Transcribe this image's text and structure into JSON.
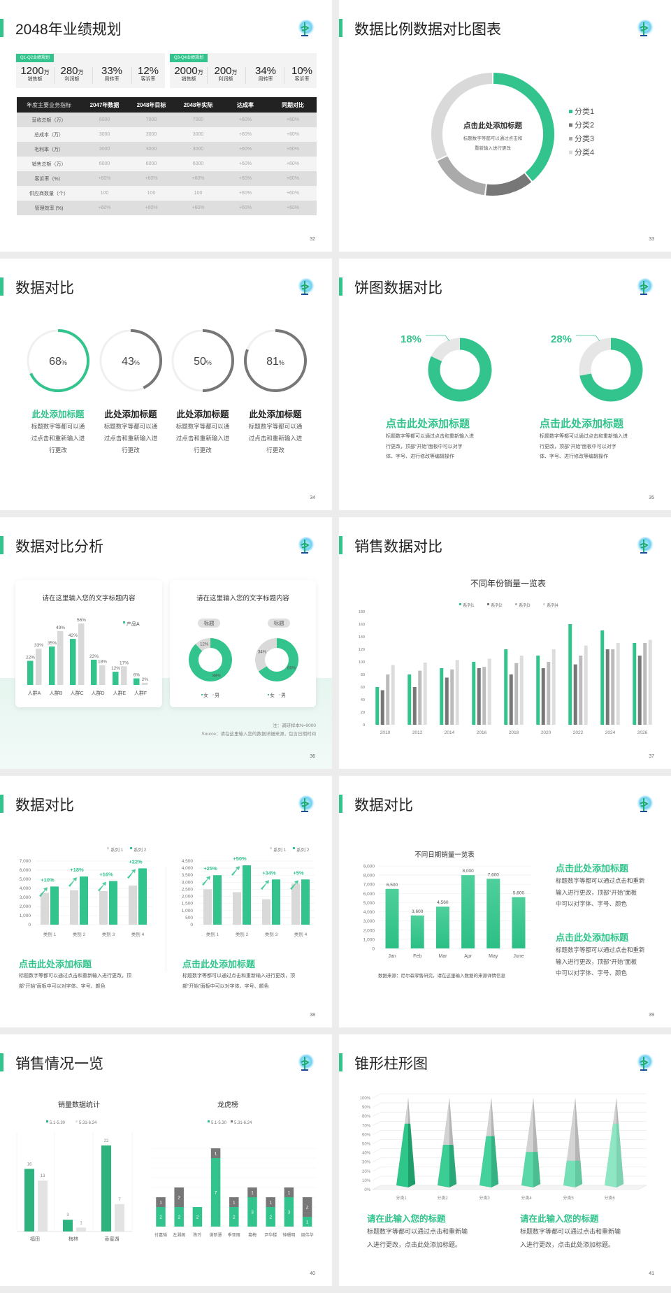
{
  "colors": {
    "green": "#33c48d",
    "dark_gray": "#777777",
    "mid_gray": "#aaaaaa",
    "light_gray": "#d9d9d9",
    "table_header": "#222222"
  },
  "logo_icon": "caduceus-logo-icon",
  "slide32": {
    "title": "2048年业绩规划",
    "page": "32",
    "groups": [
      {
        "tag": "Q1-Q2业绩规划",
        "stats": [
          {
            "value": "1200",
            "unit": "万",
            "label": "销售额"
          },
          {
            "value": "280",
            "unit": "万",
            "label": "利润额"
          },
          {
            "value": "33%",
            "unit": "",
            "label": "周转率"
          },
          {
            "value": "12%",
            "unit": "",
            "label": "客诉率"
          }
        ]
      },
      {
        "tag": "Q3-Q4业绩规划",
        "stats": [
          {
            "value": "2000",
            "unit": "万",
            "label": "销售额"
          },
          {
            "value": "200",
            "unit": "万",
            "label": "利润额"
          },
          {
            "value": "34%",
            "unit": "",
            "label": "周转率"
          },
          {
            "value": "10%",
            "unit": "",
            "label": "客诉率"
          }
        ]
      }
    ],
    "table": {
      "headers": [
        "年度主要业务指标",
        "2047年数据",
        "2048年目标",
        "2048年实际",
        "达成率",
        "同期对比"
      ],
      "rows": [
        [
          "营收总额（万）",
          "6000",
          "7000",
          "7000",
          "+60%",
          "+60%"
        ],
        [
          "总成本（万）",
          "3000",
          "3000",
          "3000",
          "+60%",
          "+60%"
        ],
        [
          "毛利率（万）",
          "3000",
          "3000",
          "3000",
          "+60%",
          "+60%"
        ],
        [
          "销售总额（万）",
          "6000",
          "6000",
          "6000",
          "+60%",
          "+60%"
        ],
        [
          "客诉率（%）",
          "+60%",
          "+60%",
          "+60%",
          "+60%",
          "+60%"
        ],
        [
          "供应商数量（个）",
          "100",
          "100",
          "100",
          "+60%",
          "+60%"
        ],
        [
          "管理效率 (%)",
          "+60%",
          "+60%",
          "+60%",
          "+60%",
          "+60%"
        ]
      ]
    }
  },
  "slide33": {
    "title": "数据比例数据对比图表",
    "page": "33",
    "center_title": "点击此处添加标题",
    "center_desc": [
      "标题数字等都可以通过点击和",
      "重新输入进行更改"
    ]
  },
  "slide34": {
    "title": "数据对比",
    "page": "34",
    "unit": "%",
    "items": [
      {
        "value": 68,
        "title": "此处添加标题",
        "desc": [
          "标题数字等都可以通",
          "过点击和重新输入进",
          "行更改"
        ],
        "accent": "green"
      },
      {
        "value": 43,
        "title": "此处添加标题",
        "desc": [
          "标题数字等都可以通",
          "过点击和重新输入进",
          "行更改"
        ],
        "accent": "gray"
      },
      {
        "value": 50,
        "title": "此处添加标题",
        "desc": [
          "标题数字等都可以通",
          "过点击和重新输入进",
          "行更改"
        ],
        "accent": "gray"
      },
      {
        "value": 81,
        "title": "此处添加标题",
        "desc": [
          "标题数字等都可以通",
          "过点击和重新输入进",
          "行更改"
        ],
        "accent": "gray"
      }
    ]
  },
  "slide35": {
    "title": "饼图数据对比",
    "page": "35",
    "items": [
      {
        "label": "18%",
        "title": "点击此处添加标题",
        "desc": [
          "标题数字等都可以通过点击和重新输入进",
          "行更改，顶部“开始”面板中可以对字",
          "体、字号、进行修改等编辑操作"
        ]
      },
      {
        "label": "28%",
        "title": "点击此处添加标题",
        "desc": [
          "标题数字等都可以通过点击和重新输入进",
          "行更改，顶部“开始”面板中可以对字",
          "体、字号、进行修改等编辑操作"
        ]
      }
    ]
  },
  "slide36": {
    "title": "数据对比分析",
    "page": "36",
    "card_titles": [
      "请在这里输入您的文字标题内容",
      "请在这里输入您的文字标题内容"
    ],
    "tags": [
      "标题",
      "标题"
    ],
    "note": "注：调研样本N=9000",
    "source": "Source：请在这里输入您的数据详细来源，包含日期时间"
  },
  "slide37": {
    "title": "销售数据对比",
    "page": "37"
  },
  "slide38": {
    "title": "数据对比",
    "page": "38",
    "items": [
      {
        "title": "点击此处添加标题",
        "desc": [
          "标题数字等都可以通过点击和重新输入进行更改，顶",
          "部“开始”面板中可以对字体、字号、颜色"
        ]
      },
      {
        "title": "点击此处添加标题",
        "desc": [
          "标题数字等都可以通过点击和重新输入进行更改，顶",
          "部“开始”面板中可以对字体、字号、颜色"
        ]
      }
    ]
  },
  "slide39": {
    "title": "数据对比",
    "page": "39",
    "source": "数据来源：尼尔森零售研究，请在这里输入数据的来源详情信息",
    "items": [
      {
        "title": "点击此处添加标题",
        "desc": [
          "标题数字等都可以通过点击和重新",
          "输入进行更改，顶部“开始”面板",
          "中可以对字体、字号、颜色"
        ]
      },
      {
        "title": "点击此处添加标题",
        "desc": [
          "标题数字等都可以通过点击和重新",
          "输入进行更改，顶部“开始”面板",
          "中可以对字体、字号、颜色"
        ]
      }
    ]
  },
  "slide40": {
    "title": "销售情况一览",
    "page": "40"
  },
  "slide41": {
    "title": "锥形柱形图",
    "page": "41",
    "items": [
      {
        "title": "请在此输入您的标题",
        "desc": [
          "标题数字等都可以通过点击和重新输",
          "入进行更改，点击此处添加标题。"
        ]
      },
      {
        "title": "请在此输入您的标题",
        "desc": [
          "标题数字等都可以通过点击和重新输",
          "入进行更改，点击此处添加标题。"
        ]
      }
    ]
  },
  "chart_data": [
    {
      "type": "pie",
      "donut": true,
      "categories": [
        "分类1",
        "分类2",
        "分类3",
        "分类4"
      ],
      "values": [
        39,
        13,
        16,
        32
      ],
      "colors": [
        "#33c48d",
        "#777777",
        "#aaaaaa",
        "#d9d9d9"
      ],
      "legend": "right"
    },
    {
      "type": "pie",
      "donut": true,
      "values": [
        82,
        18
      ],
      "data_labels": [
        "",
        "18%"
      ],
      "colors": [
        "#33c48d",
        "#e6e6e6"
      ]
    },
    {
      "type": "pie",
      "donut": true,
      "values": [
        72,
        28
      ],
      "data_labels": [
        "",
        "28%"
      ],
      "colors": [
        "#33c48d",
        "#e6e6e6"
      ]
    },
    {
      "type": "bar",
      "categories": [
        "人群A",
        "人群B",
        "人群C",
        "人群D",
        "人群E",
        "人群F"
      ],
      "series": [
        {
          "name": "产品A",
          "values": [
            22,
            35,
            42,
            23,
            12,
            6
          ]
        },
        {
          "values": [
            33,
            49,
            56,
            18,
            17,
            2
          ]
        }
      ],
      "unit": "%",
      "legend": "top-right"
    },
    {
      "type": "pie",
      "donut": true,
      "categories": [
        "女",
        "男"
      ],
      "values": [
        88,
        12
      ],
      "data_labels": [
        "88%",
        "12%"
      ]
    },
    {
      "type": "pie",
      "donut": true,
      "categories": [
        "女",
        "男"
      ],
      "values": [
        66,
        34
      ],
      "data_labels": [
        "66%",
        "34%"
      ]
    },
    {
      "type": "bar",
      "title": "不同年份销量一览表",
      "categories": [
        "2010",
        "2012",
        "2014",
        "2016",
        "2018",
        "2020",
        "2022",
        "2024",
        "2026"
      ],
      "series": [
        {
          "name": "系列1",
          "values": [
            60,
            80,
            90,
            100,
            120,
            110,
            160,
            150,
            130
          ]
        },
        {
          "name": "系列2",
          "values": [
            55,
            60,
            75,
            90,
            80,
            90,
            96,
            120,
            110
          ]
        },
        {
          "name": "系列3",
          "values": [
            80,
            86,
            88,
            92,
            98,
            100,
            110,
            120,
            130
          ]
        },
        {
          "name": "系列4",
          "values": [
            95,
            99,
            103,
            105,
            110,
            120,
            126,
            130,
            135
          ]
        }
      ],
      "ylim": [
        0,
        180
      ],
      "yticks": [
        0,
        20,
        40,
        60,
        80,
        100,
        120,
        140,
        160,
        180
      ],
      "legend": "top",
      "grid": false
    },
    {
      "type": "bar",
      "categories": [
        "类别 1",
        "类别 2",
        "类别 3",
        "类别 4"
      ],
      "series": [
        {
          "name": "系列 1",
          "values": [
            3500,
            3800,
            3700,
            4300
          ]
        },
        {
          "name": "系列 2",
          "values": [
            4200,
            5300,
            4800,
            6200
          ]
        }
      ],
      "annotations": [
        "+10%",
        "+18%",
        "+16%",
        "+22%"
      ],
      "ylim": [
        0,
        7000
      ],
      "yticks": [
        "0",
        "1,000",
        "2,000",
        "3,000",
        "4,000",
        "5,000",
        "6,000",
        "7,000"
      ],
      "legend": "top-right",
      "grid": true
    },
    {
      "type": "bar",
      "categories": [
        "类别 1",
        "类别 2",
        "类别 3",
        "类别 4"
      ],
      "series": [
        {
          "name": "系列 1",
          "values": [
            2500,
            2300,
            1800,
            2900
          ]
        },
        {
          "name": "系列 2",
          "values": [
            3500,
            4200,
            3200,
            3200
          ]
        }
      ],
      "annotations": [
        "+25%",
        "+50%",
        "+34%",
        "+5%"
      ],
      "ylim": [
        0,
        4500
      ],
      "yticks": [
        "0",
        "500",
        "1,000",
        "1,500",
        "2,000",
        "2,500",
        "3,000",
        "3,500",
        "4,000",
        "4,500"
      ],
      "legend": "top-right",
      "grid": true
    },
    {
      "type": "bar",
      "title": "不同日期销量一览表",
      "categories": [
        "Jan",
        "Feb",
        "Mar",
        "Apr",
        "May",
        "June"
      ],
      "values": [
        6500,
        3600,
        4560,
        8000,
        7600,
        5600
      ],
      "data_labels": [
        "6,500",
        "3,600",
        "4,560",
        "8,000",
        "7,600",
        "5,600"
      ],
      "ylim": [
        0,
        9000
      ],
      "yticks": [
        "0",
        "1,000",
        "2,000",
        "3,000",
        "4,000",
        "5,000",
        "6,000",
        "7,000",
        "8,000",
        "9,000"
      ],
      "grid": true
    },
    {
      "type": "bar",
      "title": "销量数据统计",
      "categories": [
        "福田",
        "梅林",
        "香蜜湖"
      ],
      "series": [
        {
          "name": "5.1-5.30",
          "values": [
            16,
            3,
            22
          ]
        },
        {
          "name": "5.31-6.24",
          "values": [
            13,
            1,
            7
          ]
        }
      ],
      "legend": "top"
    },
    {
      "type": "bar",
      "stacked": true,
      "title": "龙虎榜",
      "categories": [
        "付嘉韬",
        "左湘阁",
        "陈玲",
        "谢新慧",
        "季亚丽",
        "葛梅",
        "尹华楼",
        "钟珊明",
        "周伟华"
      ],
      "series": [
        {
          "name": "5.1-5.30",
          "values": [
            2,
            2,
            2,
            7,
            2,
            3,
            2,
            3,
            1
          ]
        },
        {
          "name": "5.31-6.24",
          "values": [
            1,
            2,
            0,
            1,
            1,
            1,
            1,
            1,
            2
          ]
        }
      ],
      "legend": "top"
    },
    {
      "type": "bar",
      "style": "3d-cone",
      "categories": [
        "分类1",
        "分类2",
        "分类3",
        "分类4",
        "分类5",
        "分类6"
      ],
      "values": [
        70,
        46,
        56,
        38,
        28,
        70
      ],
      "ylim": [
        0,
        100
      ],
      "yticks": [
        "0%",
        "10%",
        "20%",
        "30%",
        "40%",
        "50%",
        "60%",
        "70%",
        "80%",
        "90%",
        "100%"
      ],
      "grid": true
    }
  ]
}
